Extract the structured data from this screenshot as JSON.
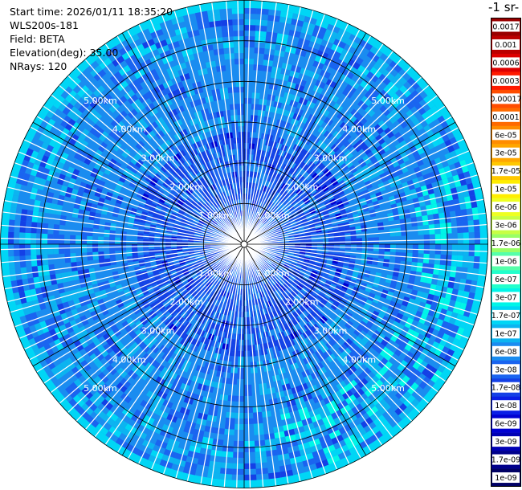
{
  "header": {
    "start_time": "Start time: 2026/01/11 18:35:20",
    "instrument": "WLS200s-181",
    "field": "Field: BETA",
    "elevation": "Elevation(deg): 35.00",
    "nrays": "NRays: 120"
  },
  "colorbar": {
    "title": "-1 sr-",
    "levels": [
      {
        "label": "0.0017",
        "color": "#990000"
      },
      {
        "label": "0.001",
        "color": "#bb0000"
      },
      {
        "label": "0.0006",
        "color": "#dd0000"
      },
      {
        "label": "0.0003",
        "color": "#ff1a00"
      },
      {
        "label": "0.00017",
        "color": "#ff4d00"
      },
      {
        "label": "0.0001",
        "color": "#ff6a00"
      },
      {
        "label": "6e-05",
        "color": "#ff8c00"
      },
      {
        "label": "3e-05",
        "color": "#ffa600"
      },
      {
        "label": "1.7e-05",
        "color": "#ffc800"
      },
      {
        "label": "1e-05",
        "color": "#ffee00"
      },
      {
        "label": "6e-06",
        "color": "#eeff22"
      },
      {
        "label": "3e-06",
        "color": "#c8ff44"
      },
      {
        "label": "1.7e-06",
        "color": "#99ff66"
      },
      {
        "label": "1e-06",
        "color": "#55ffaa"
      },
      {
        "label": "6e-07",
        "color": "#22ffcc"
      },
      {
        "label": "3e-07",
        "color": "#00f5e8"
      },
      {
        "label": "1.7e-07",
        "color": "#00d6f5"
      },
      {
        "label": "1e-07",
        "color": "#0cb4f0"
      },
      {
        "label": "6e-08",
        "color": "#1a8cf0"
      },
      {
        "label": "3e-08",
        "color": "#1a64f0"
      },
      {
        "label": "1.7e-08",
        "color": "#1440e6"
      },
      {
        "label": "1e-08",
        "color": "#0a1ee6"
      },
      {
        "label": "6e-09",
        "color": "#0000d2"
      },
      {
        "label": "3e-09",
        "color": "#0000b4"
      },
      {
        "label": "1.7e-09",
        "color": "#00008c"
      },
      {
        "label": "1e-09",
        "color": "#000064"
      }
    ]
  },
  "chart_data": {
    "type": "heatmap",
    "projection": "polar (PPI)",
    "n_rays": 120,
    "range_rings_km": [
      1,
      2,
      3,
      4,
      5
    ],
    "max_range_km": 6.0,
    "range_labels": [
      "1.00km",
      "2.00km",
      "3.00km",
      "4.00km",
      "5.00km"
    ],
    "azimuth_grid_deg": 30,
    "value_description": "backscatter BETA, mostly between 3e-08 and 1e-07, lower near the center, cyan 1.7e-07 to 3e-07 at far range toward the south and southeast",
    "colors": {
      "background_ring": "#00d6f5",
      "gap_lines": "#ffffff",
      "grid": "#000000"
    }
  }
}
